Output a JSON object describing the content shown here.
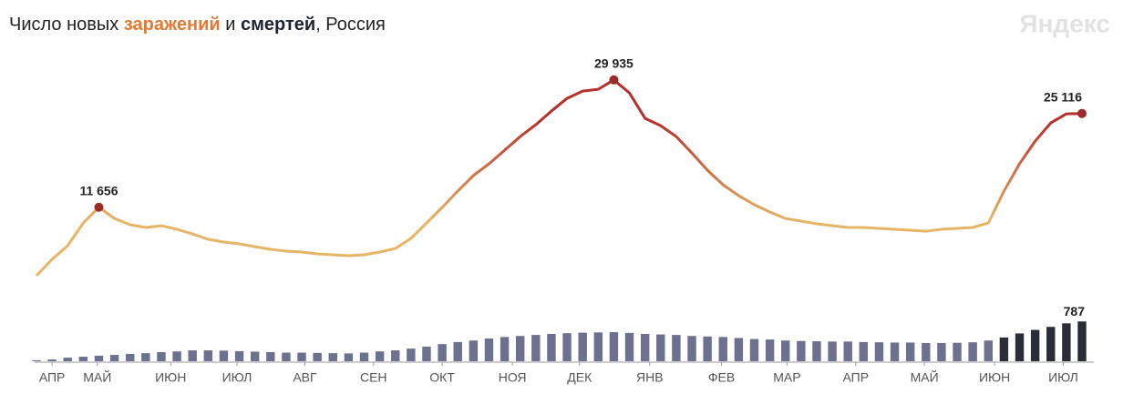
{
  "chart_data": {
    "type": "line-bar",
    "title_parts": [
      "Число новых ",
      "заражений",
      " и ",
      "смертей",
      ", Россия"
    ],
    "title_colors": [
      "#222222",
      "#e07a36",
      "#222222",
      "#1d2333",
      "#222222"
    ],
    "brand": "Яндекс",
    "xlim": [
      0,
      67
    ],
    "xticks": [
      {
        "value": 1.0,
        "label": "АПР"
      },
      {
        "value": 3.9,
        "label": "МАЙ"
      },
      {
        "value": 8.6,
        "label": "ИЮН"
      },
      {
        "value": 12.85,
        "label": "ИЮЛ"
      },
      {
        "value": 17.2,
        "label": "АВГ"
      },
      {
        "value": 21.6,
        "label": "СЕН"
      },
      {
        "value": 26.0,
        "label": "ОКТ"
      },
      {
        "value": 30.5,
        "label": "НОЯ"
      },
      {
        "value": 34.8,
        "label": "ДЕК"
      },
      {
        "value": 39.3,
        "label": "ЯНВ"
      },
      {
        "value": 43.9,
        "label": "ФЕВ"
      },
      {
        "value": 48.1,
        "label": "МАР"
      },
      {
        "value": 52.5,
        "label": "АПР"
      },
      {
        "value": 56.9,
        "label": "МАЙ"
      },
      {
        "value": 61.4,
        "label": "ИЮН"
      },
      {
        "value": 65.8,
        "label": "ИЮЛ"
      }
    ],
    "series": [
      {
        "name": "заражений",
        "kind": "line",
        "color_low": "#e6b566",
        "color_high": "#b5302c",
        "ylim": [
          0,
          32000
        ],
        "values": [
          1830,
          4180,
          6140,
          9400,
          11656,
          10050,
          9140,
          8750,
          9000,
          8490,
          7830,
          7050,
          6660,
          6400,
          6000,
          5610,
          5350,
          5220,
          4960,
          4830,
          4700,
          4830,
          5220,
          5740,
          7180,
          9400,
          11620,
          13970,
          16190,
          17890,
          19840,
          21800,
          23500,
          25460,
          27280,
          28330,
          28590,
          29935,
          28070,
          24410,
          23370,
          21800,
          19450,
          16970,
          14880,
          13320,
          12010,
          10970,
          10050,
          9660,
          9270,
          9010,
          8750,
          8750,
          8620,
          8490,
          8360,
          8220,
          8490,
          8620,
          8750,
          9400,
          13970,
          17890,
          21150,
          23760,
          25070,
          25116
        ],
        "value_labels": [
          null,
          null,
          null,
          null,
          "11 656",
          null,
          null,
          null,
          null,
          null,
          null,
          null,
          null,
          null,
          null,
          null,
          null,
          null,
          null,
          null,
          null,
          null,
          null,
          null,
          null,
          null,
          null,
          null,
          null,
          null,
          null,
          null,
          null,
          null,
          null,
          null,
          null,
          "29 935",
          null,
          null,
          null,
          null,
          null,
          null,
          null,
          null,
          null,
          null,
          null,
          null,
          null,
          null,
          null,
          null,
          null,
          null,
          null,
          null,
          null,
          null,
          null,
          null,
          null,
          null,
          null,
          null,
          null,
          "25 116"
        ]
      },
      {
        "name": "смертей",
        "kind": "bar",
        "color": "#6d7190",
        "color_recent": "#2a2c38",
        "ylim": [
          0,
          900
        ],
        "values": [
          20,
          35,
          70,
          90,
          110,
          125,
          145,
          160,
          180,
          195,
          215,
          215,
          210,
          200,
          190,
          180,
          170,
          170,
          165,
          160,
          155,
          170,
          195,
          215,
          250,
          290,
          340,
          380,
          410,
          450,
          480,
          500,
          520,
          540,
          555,
          565,
          570,
          575,
          560,
          540,
          530,
          520,
          500,
          490,
          480,
          460,
          440,
          430,
          410,
          400,
          395,
          390,
          390,
          380,
          375,
          370,
          370,
          360,
          360,
          365,
          375,
          410,
          470,
          550,
          620,
          680,
          750,
          787
        ],
        "value_labels": [
          null,
          null,
          null,
          null,
          null,
          null,
          null,
          null,
          null,
          null,
          null,
          null,
          null,
          null,
          null,
          null,
          null,
          null,
          null,
          null,
          null,
          null,
          null,
          null,
          null,
          null,
          null,
          null,
          null,
          null,
          null,
          null,
          null,
          null,
          null,
          null,
          null,
          null,
          null,
          null,
          null,
          null,
          null,
          null,
          null,
          null,
          null,
          null,
          null,
          null,
          null,
          null,
          null,
          null,
          null,
          null,
          null,
          null,
          null,
          null,
          null,
          null,
          null,
          null,
          null,
          null,
          null,
          "787"
        ]
      }
    ]
  }
}
